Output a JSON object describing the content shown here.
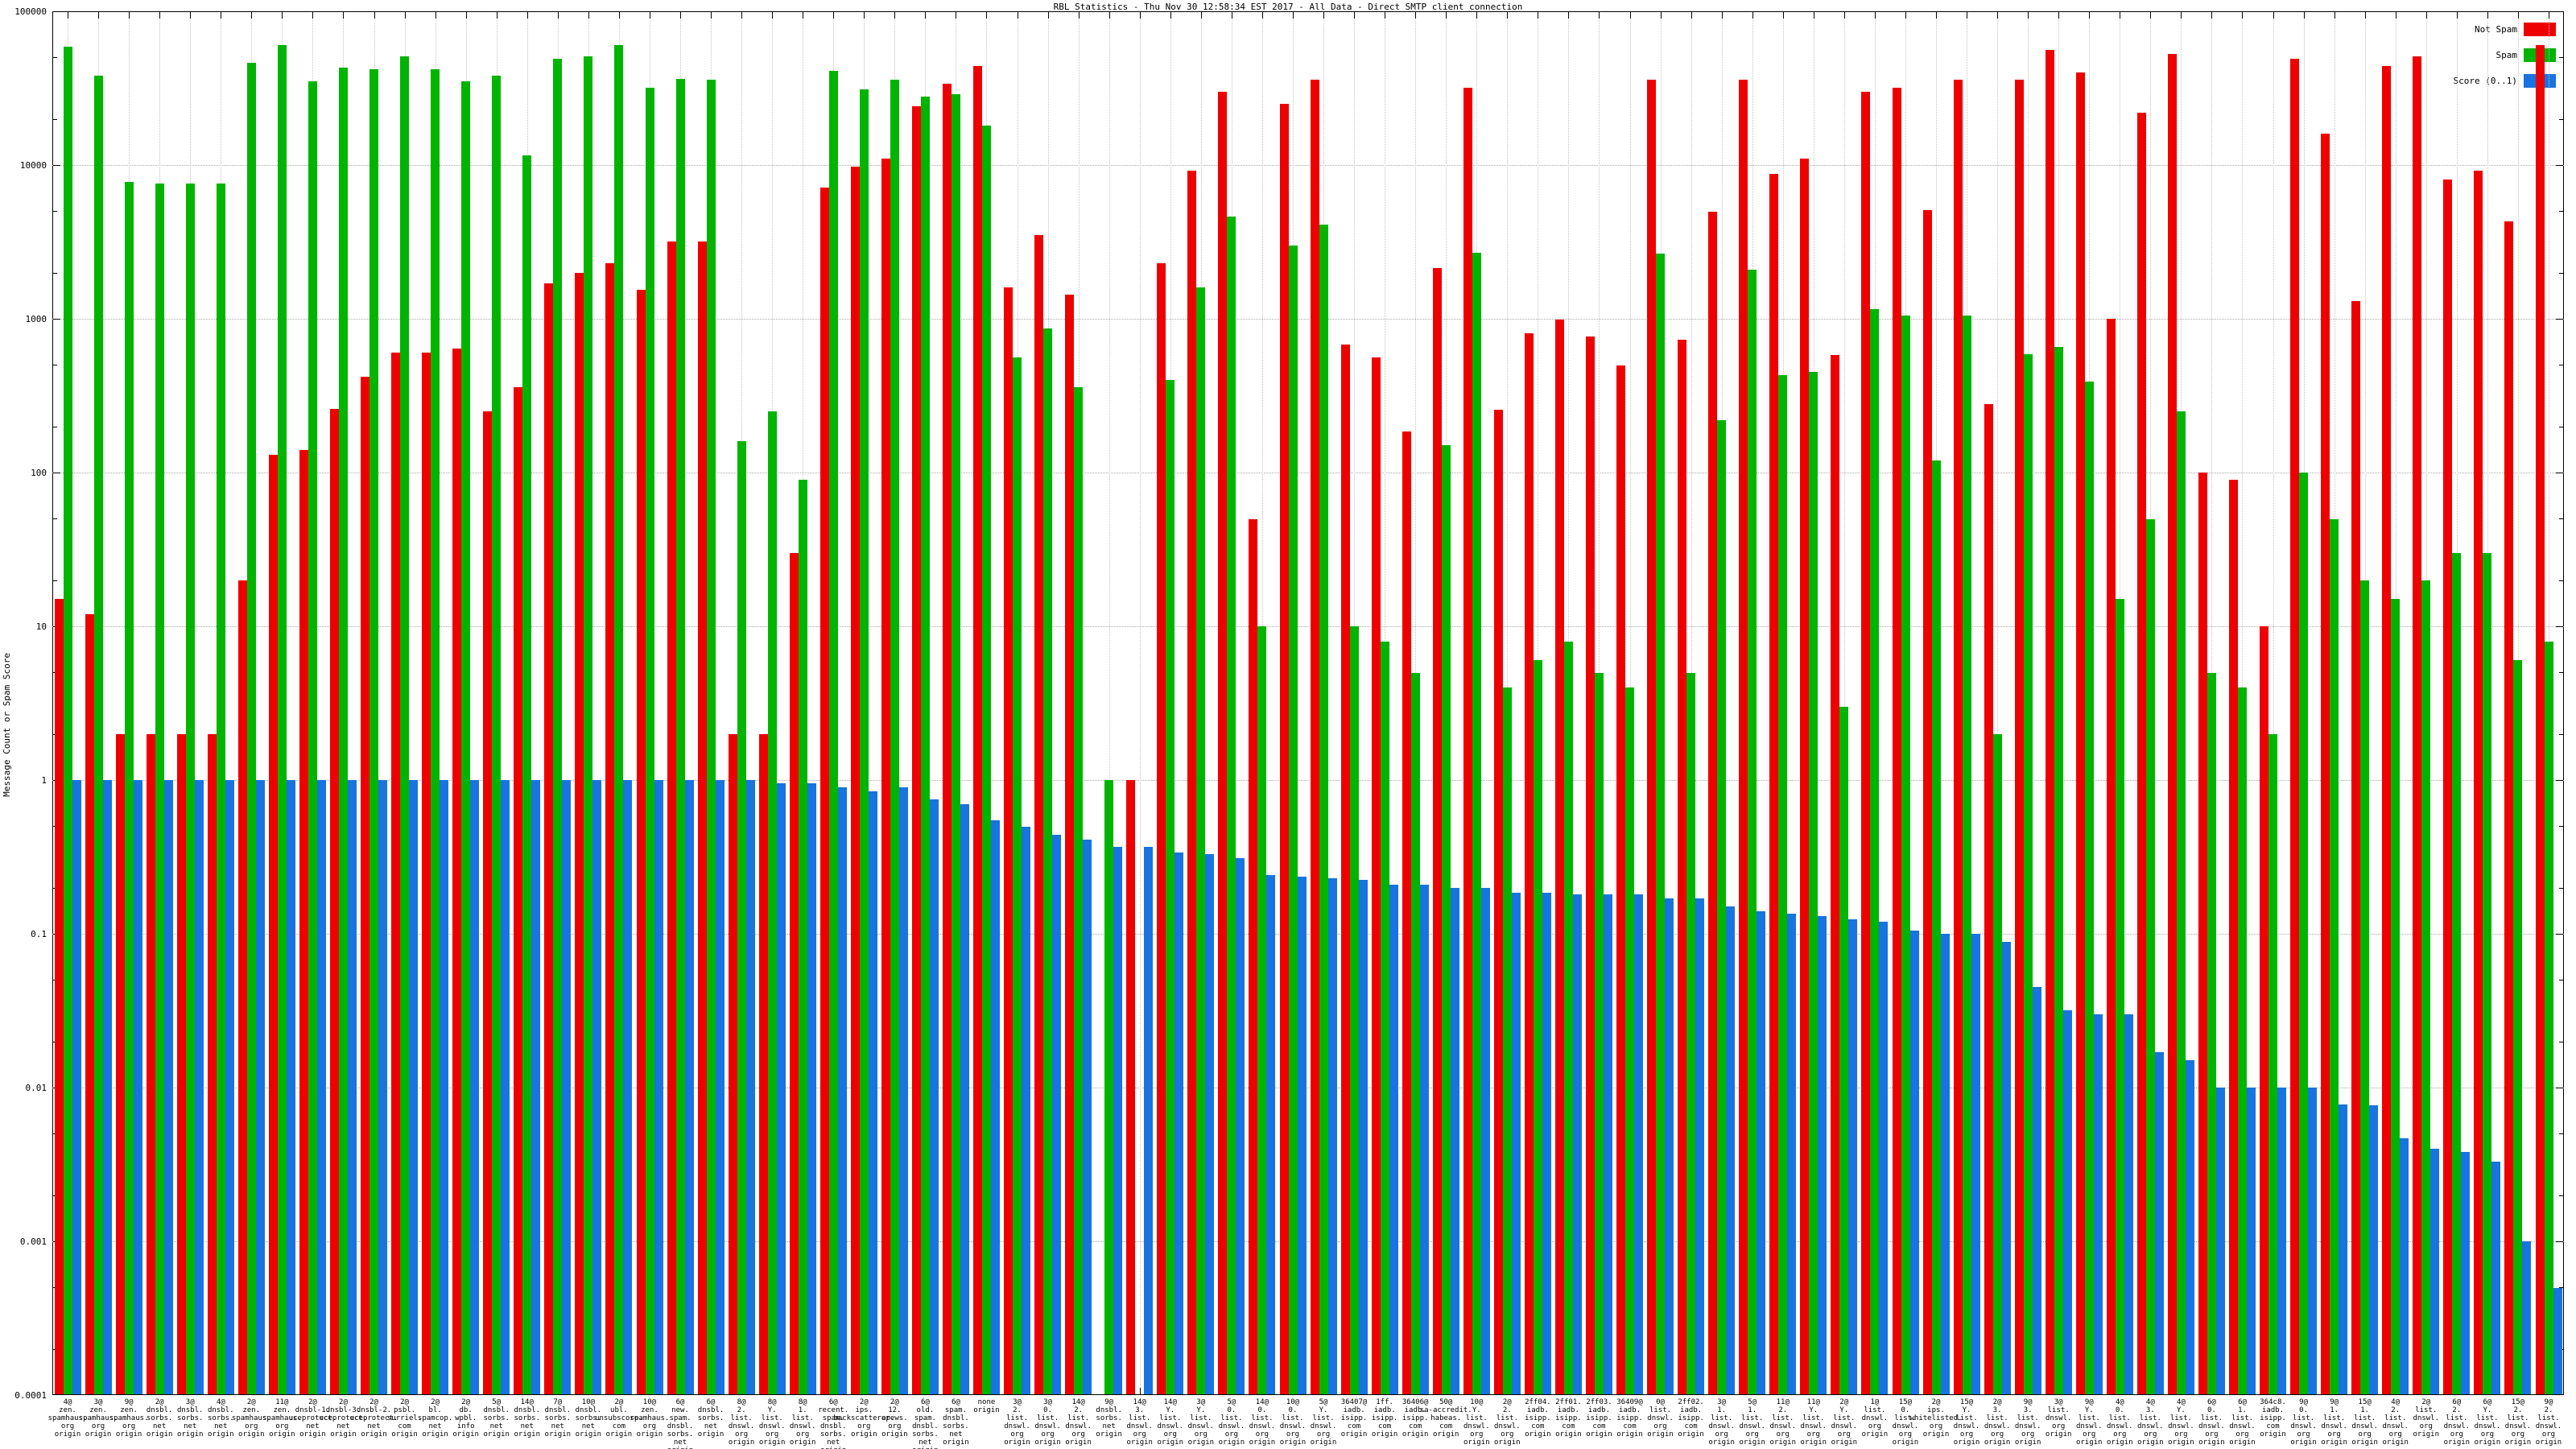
{
  "title": "RBL Statistics - Thu Nov 30 12:58:34 EST 2017 - All Data - Direct SMTP client connection",
  "y_axis": {
    "label": "Message Count or Spam Score",
    "ticks": [
      "100000",
      "10000",
      "1000",
      "100",
      "10",
      "1",
      "0.1",
      "0.01",
      "0.001",
      "0.0001"
    ]
  },
  "legend": [
    {
      "label": "Not Spam",
      "color": "#ee0000"
    },
    {
      "label": "Spam",
      "color": "#00b400"
    },
    {
      "label": "Score (0..1)",
      "color": "#1874e0"
    }
  ],
  "chart_data": {
    "type": "bar",
    "title": "RBL Statistics - Thu Nov 30 12:58:34 EST 2017 - All Data - Direct SMTP client connection",
    "xlabel": "",
    "ylabel": "Message Count or Spam Score",
    "ylim": [
      0.0001,
      100000
    ],
    "y_scale": "log",
    "grid": true,
    "legend_position": "top-right",
    "series_names": [
      "Not Spam",
      "Spam",
      "Score (0..1)"
    ],
    "colors": {
      "not_spam": "#ee0000",
      "spam": "#00b400",
      "score": "#1874e0"
    },
    "groups": [
      {
        "label": [
          "4@",
          "zen.",
          "spamhaus.",
          "org",
          "origin"
        ],
        "not_spam": 15,
        "spam": 59000,
        "score": 1.0
      },
      {
        "label": [
          "3@",
          "zen.",
          "spamhaus.",
          "org",
          "origin"
        ],
        "not_spam": 12,
        "spam": 38000,
        "score": 1.0
      },
      {
        "label": [
          "9@",
          "zen.",
          "spamhaus.",
          "org",
          "origin"
        ],
        "not_spam": 2,
        "spam": 7800,
        "score": 1.0
      },
      {
        "label": [
          "2@",
          "dnsbl.",
          "sorbs.",
          "net",
          "origin"
        ],
        "not_spam": 2,
        "spam": 7600,
        "score": 1.0
      },
      {
        "label": [
          "3@",
          "dnsbl.",
          "sorbs.",
          "net",
          "origin"
        ],
        "not_spam": 2,
        "spam": 7600,
        "score": 1.0
      },
      {
        "label": [
          "4@",
          "dnsbl.",
          "sorbs.",
          "net",
          "origin"
        ],
        "not_spam": 2,
        "spam": 7600,
        "score": 1.0
      },
      {
        "label": [
          "2@",
          "zen.",
          "spamhaus.",
          "org",
          "origin"
        ],
        "not_spam": 20,
        "spam": 46000,
        "score": 1.0
      },
      {
        "label": [
          "11@",
          "zen.",
          "spamhaus.",
          "org",
          "origin"
        ],
        "not_spam": 130,
        "spam": 60000,
        "score": 1.0
      },
      {
        "label": [
          "2@",
          "dnsbl-1.",
          "uceprotect.",
          "net",
          "origin"
        ],
        "not_spam": 140,
        "spam": 35000,
        "score": 1.0
      },
      {
        "label": [
          "2@",
          "dnsbl-3.",
          "uceprotect.",
          "net",
          "origin"
        ],
        "not_spam": 260,
        "spam": 43000,
        "score": 1.0
      },
      {
        "label": [
          "2@",
          "dnsbl-2.",
          "uceprotect.",
          "net",
          "origin"
        ],
        "not_spam": 420,
        "spam": 42000,
        "score": 1.0
      },
      {
        "label": [
          "2@",
          "psbl.",
          "surriel.",
          "com",
          "origin"
        ],
        "not_spam": 600,
        "spam": 51000,
        "score": 1.0
      },
      {
        "label": [
          "2@",
          "bl.",
          "spamcop.",
          "net",
          "origin"
        ],
        "not_spam": 600,
        "spam": 42000,
        "score": 1.0
      },
      {
        "label": [
          "2@",
          "db.",
          "wpbl.",
          "info",
          "origin"
        ],
        "not_spam": 640,
        "spam": 35000,
        "score": 1.0
      },
      {
        "label": [
          "5@",
          "dnsbl.",
          "sorbs.",
          "net",
          "origin"
        ],
        "not_spam": 250,
        "spam": 38000,
        "score": 1.0
      },
      {
        "label": [
          "14@",
          "dnsbl.",
          "sorbs.",
          "net",
          "origin"
        ],
        "not_spam": 360,
        "spam": 11500,
        "score": 1.0
      },
      {
        "label": [
          "7@",
          "dnsbl.",
          "sorbs.",
          "net",
          "origin"
        ],
        "not_spam": 1700,
        "spam": 49000,
        "score": 1.0
      },
      {
        "label": [
          "10@",
          "dnsbl.",
          "sorbs.",
          "net",
          "origin"
        ],
        "not_spam": 2000,
        "spam": 51000,
        "score": 1.0
      },
      {
        "label": [
          "2@",
          "ubl.",
          "unsubscore.",
          "com",
          "origin"
        ],
        "not_spam": 2300,
        "spam": 60000,
        "score": 1.0
      },
      {
        "label": [
          "10@",
          "zen.",
          "spamhaus.",
          "org",
          "origin"
        ],
        "not_spam": 1550,
        "spam": 32000,
        "score": 1.0
      },
      {
        "label": [
          "6@",
          "new.",
          "spam.",
          "dnsbl.",
          "sorbs.",
          "net",
          "origin"
        ],
        "not_spam": 3200,
        "spam": 36500,
        "score": 1.0
      },
      {
        "label": [
          "6@",
          "dnsbl.",
          "sorbs.",
          "net",
          "origin"
        ],
        "not_spam": 3200,
        "spam": 36000,
        "score": 1.0
      },
      {
        "label": [
          "8@",
          "2.",
          "list.",
          "dnswl.",
          "org",
          "origin"
        ],
        "not_spam": 2,
        "spam": 160,
        "score": 1.0
      },
      {
        "label": [
          "8@",
          "Y.",
          "list.",
          "dnswl.",
          "org",
          "origin"
        ],
        "not_spam": 2,
        "spam": 250,
        "score": 0.95
      },
      {
        "label": [
          "8@",
          "1.",
          "list.",
          "dnswl.",
          "org",
          "origin"
        ],
        "not_spam": 30,
        "spam": 90,
        "score": 0.95
      },
      {
        "label": [
          "6@",
          "recent.",
          "spam.",
          "dnsbl.",
          "sorbs.",
          "net",
          "origin"
        ],
        "not_spam": 7100,
        "spam": 41000,
        "score": 0.9
      },
      {
        "label": [
          "2@",
          "ips.",
          "backscatterer.",
          "org",
          "origin"
        ],
        "not_spam": 9800,
        "spam": 31000,
        "score": 0.85
      },
      {
        "label": [
          "2@",
          "12.",
          "apews.",
          "org",
          "origin"
        ],
        "not_spam": 11000,
        "spam": 36000,
        "score": 0.9
      },
      {
        "label": [
          "6@",
          "old.",
          "spam.",
          "dnsbl.",
          "sorbs.",
          "net",
          "origin"
        ],
        "not_spam": 24000,
        "spam": 28000,
        "score": 0.75
      },
      {
        "label": [
          "6@",
          "spam.",
          "dnsbl.",
          "sorbs.",
          "net",
          "origin"
        ],
        "not_spam": 34000,
        "spam": 29000,
        "score": 0.7
      },
      {
        "label": [
          "none",
          "origin"
        ],
        "not_spam": 44000,
        "spam": 18000,
        "score": 0.55
      },
      {
        "label": [
          "3@",
          "2.",
          "list.",
          "dnswl.",
          "org",
          "origin"
        ],
        "not_spam": 1600,
        "spam": 560,
        "score": 0.5
      },
      {
        "label": [
          "3@",
          "0.",
          "list.",
          "dnswl.",
          "org",
          "origin"
        ],
        "not_spam": 3500,
        "spam": 870,
        "score": 0.44
      },
      {
        "label": [
          "14@",
          "2.",
          "list.",
          "dnswl.",
          "org",
          "origin"
        ],
        "not_spam": 1440,
        "spam": 360,
        "score": 0.41
      },
      {
        "label": [
          "9@",
          "dnsbl.",
          "sorbs.",
          "net",
          "origin"
        ],
        "not_spam": 0,
        "spam": 1,
        "score": 0.37
      },
      {
        "label": [
          "14@",
          "3.",
          "list.",
          "dnswl.",
          "org",
          "origin"
        ],
        "not_spam": 1,
        "spam": 0,
        "score": 0.37
      },
      {
        "label": [
          "14@",
          "Y.",
          "list.",
          "dnswl.",
          "org",
          "origin"
        ],
        "not_spam": 2300,
        "spam": 400,
        "score": 0.34
      },
      {
        "label": [
          "3@",
          "Y.",
          "list.",
          "dnswl.",
          "org",
          "origin"
        ],
        "not_spam": 9200,
        "spam": 1600,
        "score": 0.33
      },
      {
        "label": [
          "5@",
          "0.",
          "list.",
          "dnswl.",
          "org",
          "origin"
        ],
        "not_spam": 30000,
        "spam": 4600,
        "score": 0.31
      },
      {
        "label": [
          "14@",
          "0.",
          "list.",
          "dnswl.",
          "org",
          "origin"
        ],
        "not_spam": 50,
        "spam": 10,
        "score": 0.24
      },
      {
        "label": [
          "10@",
          "0.",
          "list.",
          "dnswl.",
          "org",
          "origin"
        ],
        "not_spam": 25000,
        "spam": 3000,
        "score": 0.235
      },
      {
        "label": [
          "5@",
          "Y.",
          "list.",
          "dnswl.",
          "org",
          "origin"
        ],
        "not_spam": 36000,
        "spam": 4100,
        "score": 0.23
      },
      {
        "label": [
          "36407@",
          "iadb.",
          "isipp.",
          "com",
          "origin"
        ],
        "not_spam": 680,
        "spam": 10,
        "score": 0.225
      },
      {
        "label": [
          "1ff.",
          "iadb.",
          "isipp.",
          "com",
          "origin"
        ],
        "not_spam": 560,
        "spam": 8,
        "score": 0.21
      },
      {
        "label": [
          "36406@",
          "iadb.",
          "isipp.",
          "com",
          "origin"
        ],
        "not_spam": 185,
        "spam": 5,
        "score": 0.21
      },
      {
        "label": [
          "50@",
          "sa-accredit.",
          "habeas.",
          "com",
          "origin"
        ],
        "not_spam": 2150,
        "spam": 150,
        "score": 0.2
      },
      {
        "label": [
          "10@",
          "Y.",
          "list.",
          "dnswl.",
          "org",
          "origin"
        ],
        "not_spam": 32000,
        "spam": 2700,
        "score": 0.2
      },
      {
        "label": [
          "2@",
          "2.",
          "list.",
          "dnswl.",
          "org",
          "origin"
        ],
        "not_spam": 255,
        "spam": 4,
        "score": 0.185
      },
      {
        "label": [
          "2ff04.",
          "iadb.",
          "isipp.",
          "com",
          "origin"
        ],
        "not_spam": 810,
        "spam": 6,
        "score": 0.185
      },
      {
        "label": [
          "2ff01.",
          "iadb.",
          "isipp.",
          "com",
          "origin"
        ],
        "not_spam": 990,
        "spam": 8,
        "score": 0.18
      },
      {
        "label": [
          "2ff03.",
          "iadb.",
          "isipp.",
          "com",
          "origin"
        ],
        "not_spam": 770,
        "spam": 5,
        "score": 0.18
      },
      {
        "label": [
          "36409@",
          "iadb.",
          "isipp.",
          "com",
          "origin"
        ],
        "not_spam": 500,
        "spam": 4,
        "score": 0.18
      },
      {
        "label": [
          "0@",
          "list.",
          "dnswl.",
          "org",
          "origin"
        ],
        "not_spam": 36000,
        "spam": 2650,
        "score": 0.17
      },
      {
        "label": [
          "2ff02.",
          "iadb.",
          "isipp.",
          "com",
          "origin"
        ],
        "not_spam": 730,
        "spam": 5,
        "score": 0.17
      },
      {
        "label": [
          "3@",
          "1.",
          "list.",
          "dnswl.",
          "org",
          "origin"
        ],
        "not_spam": 5000,
        "spam": 220,
        "score": 0.15
      },
      {
        "label": [
          "5@",
          "1.",
          "list.",
          "dnswl.",
          "org",
          "origin"
        ],
        "not_spam": 36000,
        "spam": 2100,
        "score": 0.14
      },
      {
        "label": [
          "11@",
          "2.",
          "list.",
          "dnswl.",
          "org",
          "origin"
        ],
        "not_spam": 8800,
        "spam": 430,
        "score": 0.135
      },
      {
        "label": [
          "11@",
          "Y.",
          "list.",
          "dnswl.",
          "org",
          "origin"
        ],
        "not_spam": 11000,
        "spam": 450,
        "score": 0.13
      },
      {
        "label": [
          "2@",
          "Y.",
          "list.",
          "dnswl.",
          "org",
          "origin"
        ],
        "not_spam": 580,
        "spam": 3,
        "score": 0.125
      },
      {
        "label": [
          "1@",
          "list.",
          "dnswl.",
          "org",
          "origin"
        ],
        "not_spam": 30000,
        "spam": 1150,
        "score": 0.12
      },
      {
        "label": [
          "15@",
          "0.",
          "list.",
          "dnswl.",
          "org",
          "origin"
        ],
        "not_spam": 32000,
        "spam": 1050,
        "score": 0.105
      },
      {
        "label": [
          "2@",
          "ips.",
          "whitelisted.",
          "org",
          "origin"
        ],
        "not_spam": 5100,
        "spam": 120,
        "score": 0.1
      },
      {
        "label": [
          "15@",
          "Y.",
          "list.",
          "dnswl.",
          "org",
          "origin"
        ],
        "not_spam": 36000,
        "spam": 1050,
        "score": 0.1
      },
      {
        "label": [
          "2@",
          "3.",
          "list.",
          "dnswl.",
          "org",
          "origin"
        ],
        "not_spam": 280,
        "spam": 2,
        "score": 0.089
      },
      {
        "label": [
          "9@",
          "3.",
          "list.",
          "dnswl.",
          "org",
          "origin"
        ],
        "not_spam": 36000,
        "spam": 590,
        "score": 0.045
      },
      {
        "label": [
          "3@",
          "list.",
          "dnswl.",
          "org",
          "origin"
        ],
        "not_spam": 56000,
        "spam": 660,
        "score": 0.032
      },
      {
        "label": [
          "9@",
          "Y.",
          "list.",
          "dnswl.",
          "org",
          "origin"
        ],
        "not_spam": 40000,
        "spam": 390,
        "score": 0.03
      },
      {
        "label": [
          "4@",
          "0.",
          "list.",
          "dnswl.",
          "org",
          "origin"
        ],
        "not_spam": 1000,
        "spam": 15,
        "score": 0.03
      },
      {
        "label": [
          "4@",
          "3.",
          "list.",
          "dnswl.",
          "org",
          "origin"
        ],
        "not_spam": 22000,
        "spam": 50,
        "score": 0.017
      },
      {
        "label": [
          "4@",
          "Y.",
          "list.",
          "dnswl.",
          "org",
          "origin"
        ],
        "not_spam": 53000,
        "spam": 250,
        "score": 0.015
      },
      {
        "label": [
          "6@",
          "0.",
          "list.",
          "dnswl.",
          "org",
          "origin"
        ],
        "not_spam": 100,
        "spam": 5,
        "score": 0.01
      },
      {
        "label": [
          "6@",
          "1.",
          "list.",
          "dnswl.",
          "org",
          "origin"
        ],
        "not_spam": 90,
        "spam": 4,
        "score": 0.01
      },
      {
        "label": [
          "364c8.",
          "iadb.",
          "isipp.",
          "com",
          "origin"
        ],
        "not_spam": 10,
        "spam": 2,
        "score": 0.01
      },
      {
        "label": [
          "9@",
          "0.",
          "list.",
          "dnswl.",
          "org",
          "origin"
        ],
        "not_spam": 49000,
        "spam": 100,
        "score": 0.01
      },
      {
        "label": [
          "9@",
          "1.",
          "list.",
          "dnswl.",
          "org",
          "origin"
        ],
        "not_spam": 16000,
        "spam": 50,
        "score": 0.0078
      },
      {
        "label": [
          "15@",
          "1.",
          "list.",
          "dnswl.",
          "org",
          "origin"
        ],
        "not_spam": 1300,
        "spam": 20,
        "score": 0.0077
      },
      {
        "label": [
          "4@",
          "2.",
          "list.",
          "dnswl.",
          "org",
          "origin"
        ],
        "not_spam": 44000,
        "spam": 15,
        "score": 0.0047
      },
      {
        "label": [
          "2@",
          "list.",
          "dnswl.",
          "org",
          "origin"
        ],
        "not_spam": 51000,
        "spam": 20,
        "score": 0.004
      },
      {
        "label": [
          "6@",
          "2.",
          "list.",
          "dnswl.",
          "org",
          "origin"
        ],
        "not_spam": 8100,
        "spam": 30,
        "score": 0.0038
      },
      {
        "label": [
          "6@",
          "Y.",
          "list.",
          "dnswl.",
          "org",
          "origin"
        ],
        "not_spam": 9200,
        "spam": 30,
        "score": 0.0033
      },
      {
        "label": [
          "15@",
          "2.",
          "list.",
          "dnswl.",
          "org",
          "origin"
        ],
        "not_spam": 4300,
        "spam": 6,
        "score": 0.001
      },
      {
        "label": [
          "9@",
          "2.",
          "list.",
          "dnswl.",
          "org",
          "origin"
        ],
        "not_spam": 60000,
        "spam": 8,
        "score": 0.0005
      }
    ]
  }
}
